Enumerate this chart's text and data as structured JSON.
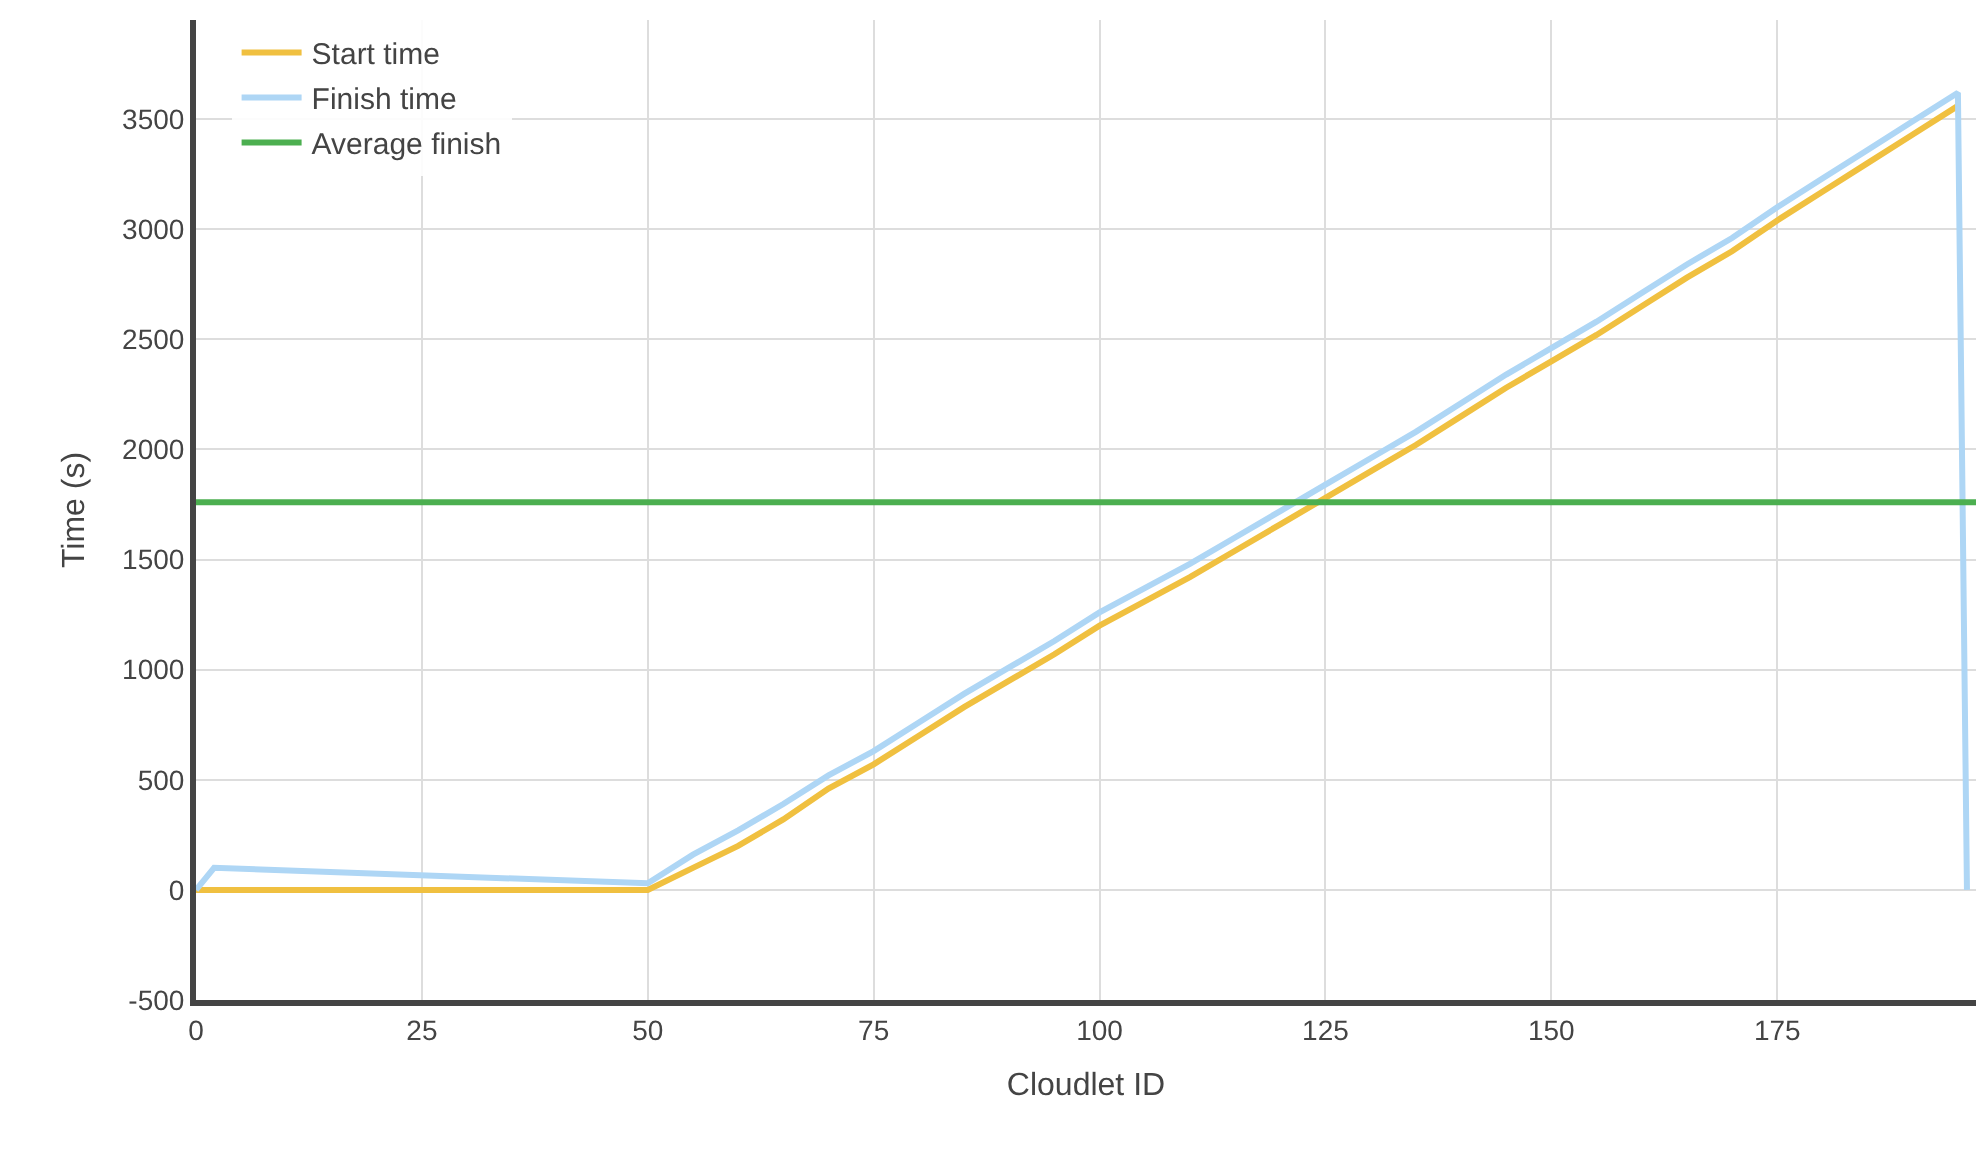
{
  "chart_data": {
    "type": "line",
    "xlabel": "Cloudlet ID",
    "ylabel": "Time (s)",
    "xlim": [
      0,
      197
    ],
    "xticks": [
      0,
      25,
      50,
      75,
      100,
      125,
      150,
      175
    ],
    "ylim": [
      -500,
      3950
    ],
    "yticks": [
      -500,
      0,
      500,
      1000,
      1500,
      2000,
      2500,
      3000,
      3500
    ],
    "grid": true,
    "legend": "top left",
    "marker": "none",
    "line_style": "solid",
    "series": [
      {
        "name": "Start time",
        "color": "#f0c040",
        "x": [
          0,
          2,
          50,
          55,
          60,
          65,
          70,
          75,
          80,
          85,
          90,
          95,
          100,
          105,
          110,
          115,
          120,
          125,
          130,
          135,
          140,
          145,
          150,
          155,
          160,
          165,
          170,
          175,
          180,
          185,
          190,
          195
        ],
        "values": [
          0,
          0,
          0,
          100,
          200,
          320,
          460,
          570,
          700,
          830,
          950,
          1070,
          1200,
          1310,
          1420,
          1540,
          1660,
          1780,
          1900,
          2020,
          2150,
          2280,
          2400,
          2520,
          2650,
          2780,
          2900,
          3040,
          3170,
          3300,
          3430,
          3560
        ]
      },
      {
        "name": "Finish time",
        "color": "#aed6f5",
        "x": [
          0,
          2,
          50,
          55,
          60,
          65,
          70,
          75,
          80,
          85,
          90,
          95,
          100,
          105,
          110,
          115,
          120,
          125,
          130,
          135,
          140,
          145,
          150,
          155,
          160,
          165,
          170,
          175,
          180,
          185,
          190,
          195,
          196
        ],
        "values": [
          0,
          100,
          30,
          160,
          270,
          390,
          520,
          630,
          760,
          890,
          1010,
          1130,
          1260,
          1370,
          1480,
          1600,
          1720,
          1840,
          1960,
          2080,
          2210,
          2340,
          2460,
          2580,
          2710,
          2840,
          2960,
          3100,
          3230,
          3360,
          3490,
          3620,
          0
        ]
      },
      {
        "name": "Average finish",
        "color": "#4caf50",
        "x": [
          0,
          197
        ],
        "values": [
          1760,
          1760
        ]
      }
    ]
  }
}
